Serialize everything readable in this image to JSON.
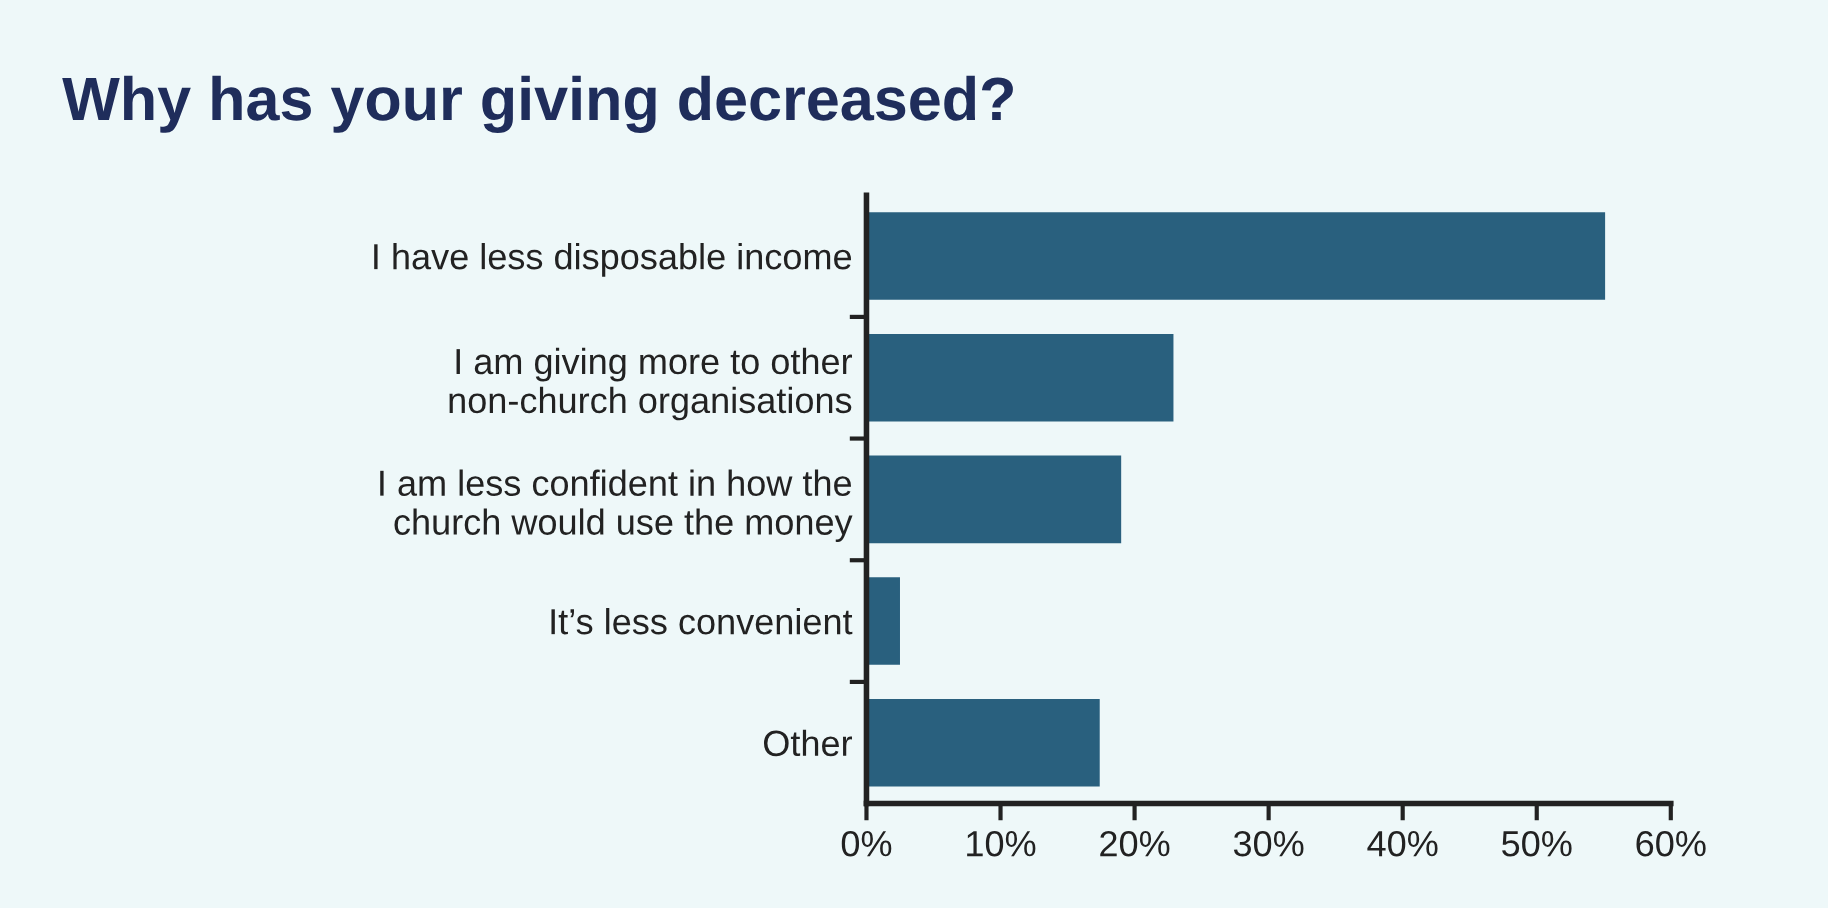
{
  "chart_data": {
    "type": "bar",
    "orientation": "horizontal",
    "title": "Why has your giving decreased?",
    "categories": [
      "I have less disposable income",
      "I am giving more to other\nnon-church organisations",
      "I am less confident in how the\nchurch would use the money",
      "It’s less convenient",
      "Other"
    ],
    "values": [
      55.1,
      22.9,
      19.0,
      2.5,
      17.4
    ],
    "color": "#29607e",
    "xlim": [
      0,
      60
    ],
    "xticks": [
      {
        "value": 0,
        "label": "0%"
      },
      {
        "value": 10,
        "label": "10%"
      },
      {
        "value": 20,
        "label": "20%"
      },
      {
        "value": 30,
        "label": "30%"
      },
      {
        "value": 40,
        "label": "40%"
      },
      {
        "value": 50,
        "label": "50%"
      },
      {
        "value": 60,
        "label": "60%"
      }
    ],
    "grid": false,
    "legend": false
  }
}
